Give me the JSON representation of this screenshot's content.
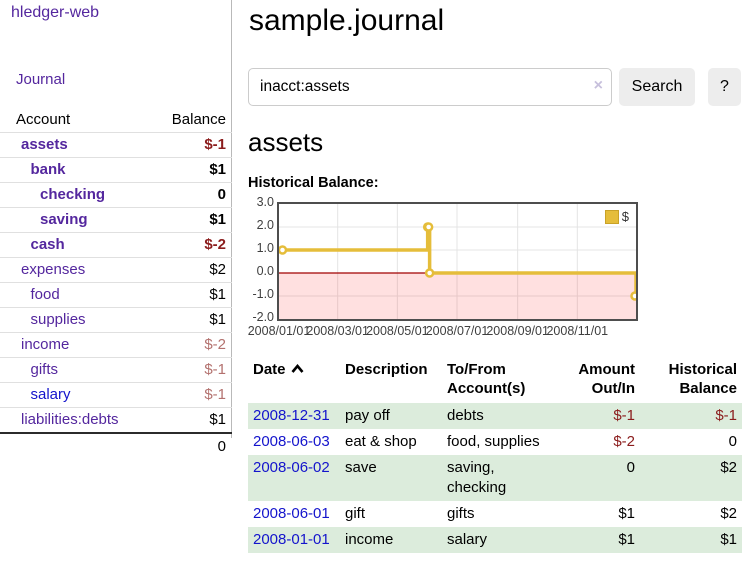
{
  "colors": {
    "link_purple": "#54279e",
    "link_blue": "#1414cc",
    "negative_strong": "#8b1c1c",
    "negative_soft": "#b3716e",
    "row_green": "#dcecdc",
    "chart_line_yellow": "#e5bd3a",
    "chart_zero_line_red": "#a00000",
    "chart_negative_fill": "rgba(255,0,0,0.12)",
    "button_gray": "#ededed"
  },
  "sidebar": {
    "app_title": "hledger-web",
    "journal_link": "Journal",
    "accounts": {
      "headers": {
        "account": "Account",
        "balance": "Balance"
      },
      "rows": [
        {
          "name": "assets",
          "depth": 1,
          "bold": true,
          "balance": "$-1",
          "neg": "strong"
        },
        {
          "name": "bank",
          "depth": 2,
          "bold": true,
          "balance": "$1",
          "neg": "none"
        },
        {
          "name": "checking",
          "depth": 3,
          "bold": true,
          "balance": "0",
          "neg": "none"
        },
        {
          "name": "saving",
          "depth": 3,
          "bold": true,
          "balance": "$1",
          "neg": "none"
        },
        {
          "name": "cash",
          "depth": 2,
          "bold": true,
          "balance": "$-2",
          "neg": "strong"
        },
        {
          "name": "expenses",
          "depth": 1,
          "bold": false,
          "balance": "$2",
          "neg": "none"
        },
        {
          "name": "food",
          "depth": 2,
          "bold": false,
          "balance": "$1",
          "neg": "none"
        },
        {
          "name": "supplies",
          "depth": 2,
          "bold": false,
          "balance": "$1",
          "neg": "none"
        },
        {
          "name": "income",
          "depth": 1,
          "bold": false,
          "balance": "$-2",
          "neg": "soft"
        },
        {
          "name": "gifts",
          "depth": 2,
          "bold": false,
          "balance": "$-1",
          "neg": "soft"
        },
        {
          "name": "salary",
          "depth": 2,
          "bold": false,
          "balance": "$-1",
          "neg": "soft",
          "link_color": "#1414cc"
        },
        {
          "name": "liabilities:debts",
          "depth": 1,
          "bold": false,
          "balance": "$1",
          "neg": "none"
        }
      ],
      "total": "0"
    }
  },
  "main": {
    "title": "sample.journal",
    "search": {
      "value": "inacct:assets",
      "clear_icon": "×",
      "search_button": "Search",
      "help_button": "?"
    },
    "account_heading": "assets",
    "chart_label": "Historical Balance:",
    "register": {
      "headers": {
        "date": "Date",
        "description": "Description",
        "tofrom": "To/From Account(s)",
        "amount": "Amount Out/In",
        "balance": "Historical Balance"
      },
      "rows": [
        {
          "date": "2008-12-31",
          "description": "pay off",
          "tofrom": "debts",
          "amount": "$-1",
          "balance": "$-1"
        },
        {
          "date": "2008-06-03",
          "description": "eat & shop",
          "tofrom": "food, supplies",
          "amount": "$-2",
          "balance": "0"
        },
        {
          "date": "2008-06-02",
          "description": "save",
          "tofrom": "saving, checking",
          "amount": "0",
          "balance": "$2"
        },
        {
          "date": "2008-06-01",
          "description": "gift",
          "tofrom": "gifts",
          "amount": "$1",
          "balance": "$2"
        },
        {
          "date": "2008-01-01",
          "description": "income",
          "tofrom": "salary",
          "amount": "$1",
          "balance": "$1"
        }
      ]
    }
  },
  "chart_data": {
    "type": "line",
    "title": "Historical Balance",
    "step": true,
    "series": [
      {
        "name": "$",
        "color": "#e5bd3a",
        "x": [
          "2008-01-01",
          "2008-06-01",
          "2008-06-02",
          "2008-06-03",
          "2008-12-31"
        ],
        "y": [
          1,
          2,
          2,
          0,
          -1
        ]
      }
    ],
    "x_start": "2008-01-01",
    "x_end": "2008-12-31",
    "ylim": [
      -2,
      3
    ],
    "yticks": [
      3.0,
      2.0,
      1.0,
      0.0,
      -1.0,
      -2.0
    ],
    "xticks": [
      "2008/01/01",
      "2008/03/01",
      "2008/05/01",
      "2008/07/01",
      "2008/09/01",
      "2008/11/01"
    ],
    "grid": true,
    "legend_position": "top-right",
    "negative_region_shaded": true
  }
}
